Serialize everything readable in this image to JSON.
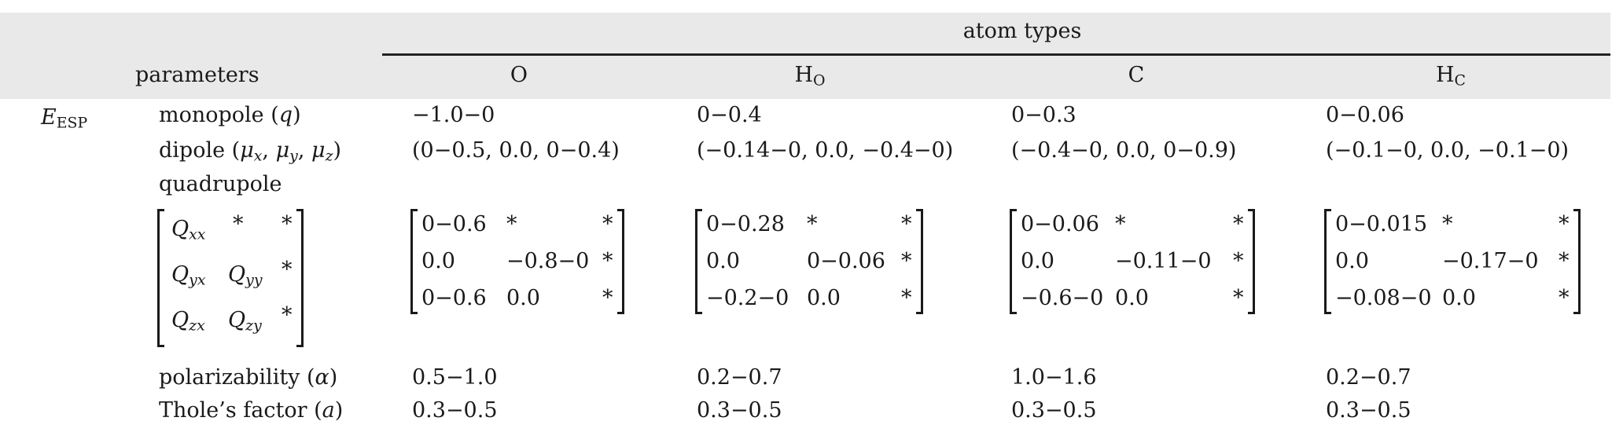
{
  "header": {
    "group_label": "atom types",
    "parameters_label": "parameters",
    "columns": [
      {
        "main": "O",
        "sub": ""
      },
      {
        "main": "H",
        "sub": "O"
      },
      {
        "main": "C",
        "sub": ""
      },
      {
        "main": "H",
        "sub": "C"
      }
    ]
  },
  "group": {
    "main": "E",
    "sub": "ESP"
  },
  "rows": {
    "monopole": {
      "label": "monopole (",
      "symbol": "q",
      "label_end": ")",
      "values": [
        "−1.0−0",
        "0−0.4",
        "0−0.3",
        "0−0.06"
      ]
    },
    "dipole": {
      "label": "dipole (",
      "mu": "μ",
      "subs": [
        "x",
        "y",
        "z"
      ],
      "sep": ", ",
      "label_end": ")",
      "values": [
        "(0−0.5, 0.0, 0−0.4)",
        "(−0.14−0, 0.0, −0.4−0)",
        "(−0.4−0, 0.0, 0−0.9)",
        "(−0.1−0, 0.0, −0.1−0)"
      ]
    },
    "quadrupole": {
      "label": "quadrupole",
      "legend": [
        [
          {
            "q": "Q",
            "s": "xx"
          },
          {
            "t": "*"
          },
          {
            "t": "*"
          }
        ],
        [
          {
            "q": "Q",
            "s": "yx"
          },
          {
            "q": "Q",
            "s": "yy"
          },
          {
            "t": "*"
          }
        ],
        [
          {
            "q": "Q",
            "s": "zx"
          },
          {
            "q": "Q",
            "s": "zy"
          },
          {
            "t": "*"
          }
        ]
      ],
      "matrices": [
        [
          [
            "0−0.6",
            "*",
            "*"
          ],
          [
            "0.0",
            "−0.8−0",
            "*"
          ],
          [
            "0−0.6",
            "0.0",
            "*"
          ]
        ],
        [
          [
            "0−0.28",
            "*",
            "*"
          ],
          [
            "0.0",
            "0−0.06",
            "*"
          ],
          [
            "−0.2−0",
            "0.0",
            "*"
          ]
        ],
        [
          [
            "0−0.06",
            "*",
            "*"
          ],
          [
            "0.0",
            "−0.11−0",
            "*"
          ],
          [
            "−0.6−0",
            "0.0",
            "*"
          ]
        ],
        [
          [
            "0−0.015",
            "*",
            "*"
          ],
          [
            "0.0",
            "−0.17−0",
            "*"
          ],
          [
            "−0.08−0",
            "0.0",
            "*"
          ]
        ]
      ]
    },
    "polarizability": {
      "label": "polarizability (",
      "symbol": "α",
      "label_end": ")",
      "values": [
        "0.5−1.0",
        "0.2−0.7",
        "1.0−1.6",
        "0.2−0.7"
      ]
    },
    "thole": {
      "label": "Thole’s factor (",
      "symbol": "a",
      "label_end": ")",
      "values": [
        "0.3−0.5",
        "0.3−0.5",
        "0.3−0.5",
        "0.3−0.5"
      ]
    }
  }
}
